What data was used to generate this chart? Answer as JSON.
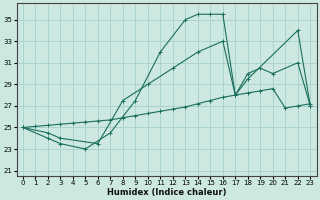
{
  "xlabel": "Humidex (Indice chaleur)",
  "bg_color": "#cce8e0",
  "grid_color": "#aad4cc",
  "line_color": "#1a6e5e",
  "xlim": [
    -0.5,
    23.5
  ],
  "ylim": [
    20.5,
    36.5
  ],
  "yticks": [
    21,
    23,
    25,
    27,
    29,
    31,
    33,
    35
  ],
  "xticks": [
    0,
    1,
    2,
    3,
    4,
    5,
    6,
    7,
    8,
    9,
    10,
    11,
    12,
    13,
    14,
    15,
    16,
    17,
    18,
    19,
    20,
    21,
    22,
    23
  ],
  "line1_x": [
    0,
    2,
    3,
    5,
    7,
    9,
    11,
    13,
    14,
    15,
    16,
    17,
    18,
    22,
    23
  ],
  "line1_y": [
    25,
    24,
    23.5,
    23,
    24.5,
    27.5,
    32,
    35,
    35.5,
    35.5,
    35.5,
    28,
    29.5,
    34,
    27
  ],
  "line2_x": [
    0,
    2,
    3,
    6,
    8,
    10,
    12,
    14,
    16,
    17,
    18,
    19,
    20,
    22,
    23
  ],
  "line2_y": [
    25,
    24.5,
    24,
    23.5,
    27.5,
    29,
    30.5,
    32,
    33,
    28,
    30,
    30.5,
    30,
    31,
    27
  ],
  "line3_x": [
    0,
    1,
    2,
    3,
    4,
    5,
    6,
    7,
    8,
    9,
    10,
    11,
    12,
    13,
    14,
    15,
    16,
    17,
    18,
    19,
    20,
    21,
    22,
    23
  ],
  "line3_y": [
    25,
    25.1,
    25.2,
    25.3,
    25.4,
    25.5,
    25.6,
    25.7,
    25.9,
    26.1,
    26.3,
    26.5,
    26.7,
    26.9,
    27.2,
    27.5,
    27.8,
    28.0,
    28.2,
    28.4,
    28.6,
    26.8,
    27.0,
    27.2
  ]
}
